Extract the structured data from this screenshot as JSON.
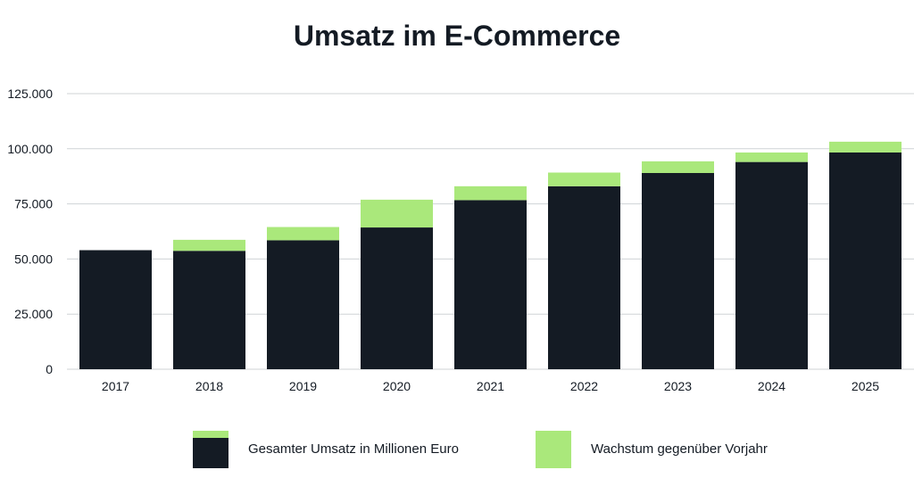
{
  "chart_data": {
    "type": "bar",
    "stacked": true,
    "title": "Umsatz im E-Commerce",
    "xlabel": "",
    "ylabel": "",
    "categories": [
      "2017",
      "2018",
      "2019",
      "2020",
      "2021",
      "2022",
      "2023",
      "2024",
      "2025"
    ],
    "series": [
      {
        "name": "Gesamter Umsatz in Millionen Euro",
        "color": "#141b24",
        "values": [
          54000,
          53700,
          58500,
          64300,
          76700,
          83000,
          89000,
          94000,
          98300
        ]
      },
      {
        "name": "Wachstum gegenüber Vorjahr",
        "color": "#aae87b",
        "values": [
          0,
          5000,
          6000,
          12600,
          6300,
          6200,
          5300,
          4300,
          4900
        ]
      }
    ],
    "ylim": [
      0,
      125000
    ],
    "yticks": [
      0,
      25000,
      50000,
      75000,
      100000,
      125000
    ],
    "ytick_labels": [
      "0",
      "25.000",
      "50.000",
      "75.000",
      "100.000",
      "125.000"
    ],
    "grid": true,
    "legend_position": "bottom"
  }
}
